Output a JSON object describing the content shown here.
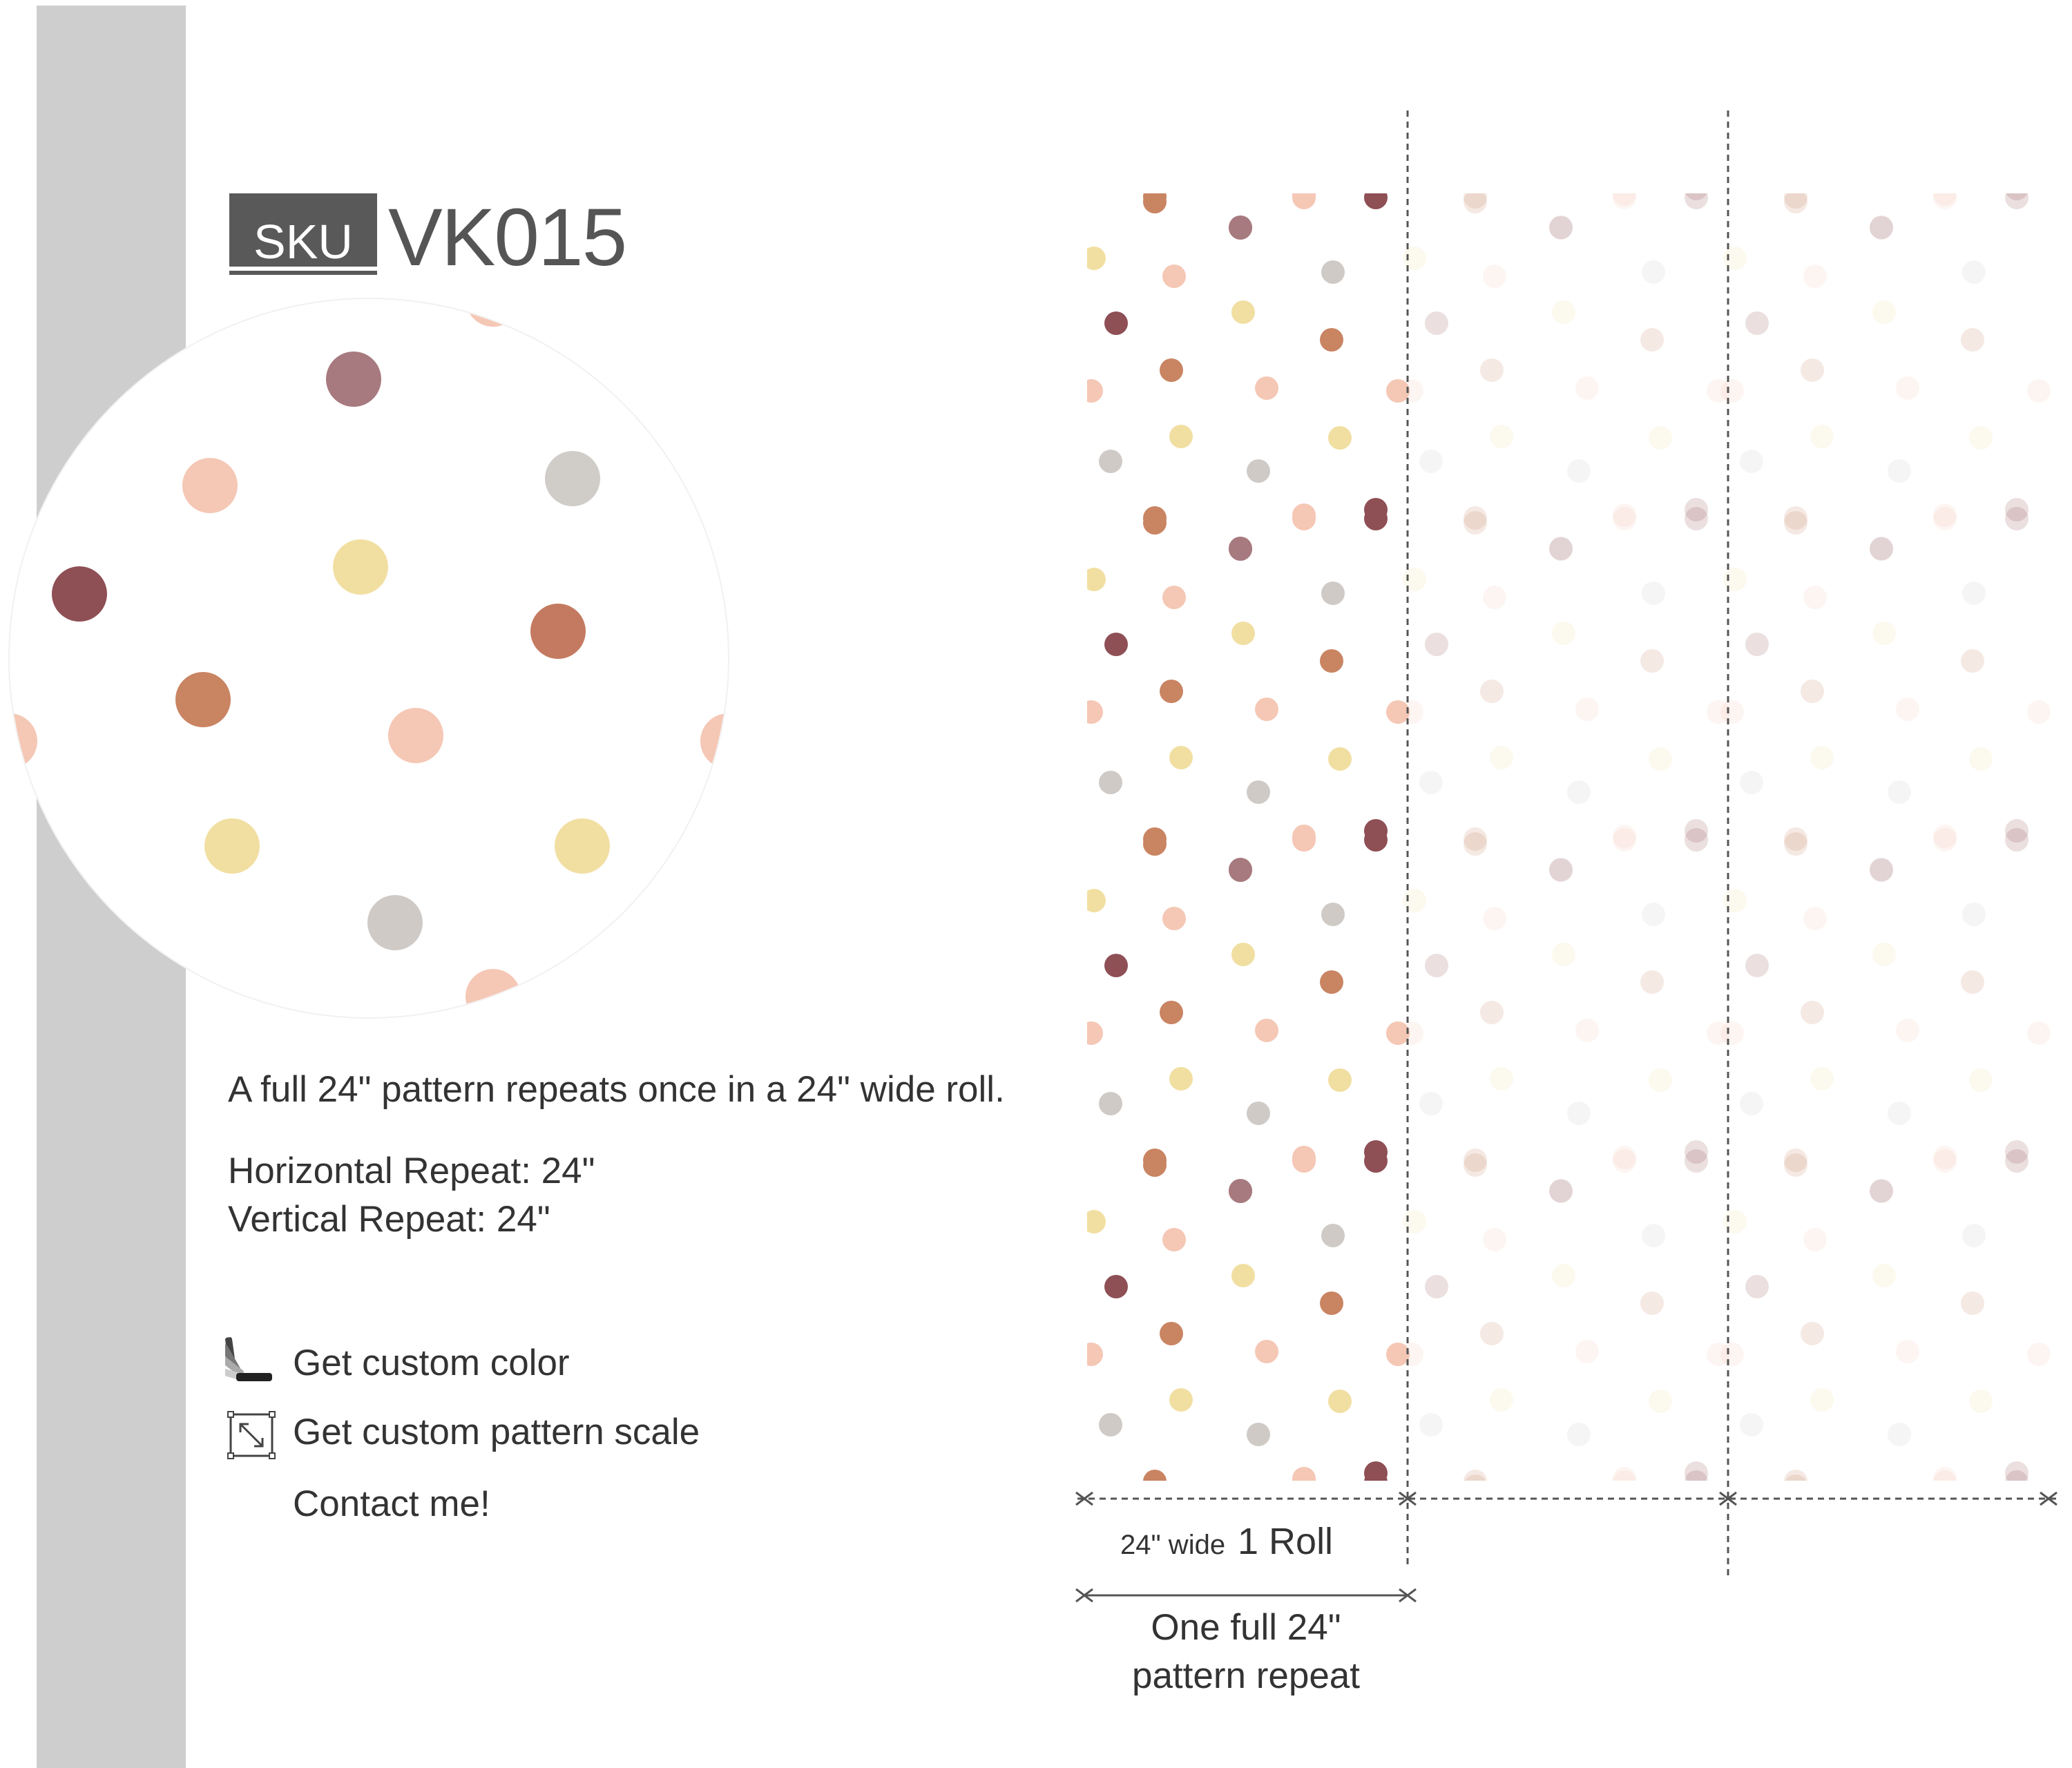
{
  "sku": {
    "badge": "SKU",
    "code": "VK015"
  },
  "description": "A full 24\" pattern repeats once in a 24\" wide roll.",
  "repeats": {
    "horizontal": "Horizontal Repeat: 24\"",
    "vertical": "Vertical Repeat: 24\""
  },
  "actions": {
    "custom_color": "Get custom color",
    "custom_scale": "Get custom pattern scale",
    "contact": "Contact me!"
  },
  "diagram": {
    "roll_width": "24\" wide",
    "roll_count": "1 Roll",
    "repeat_line1": "One full 24\"",
    "repeat_line2": "pattern repeat"
  },
  "colors": {
    "mauve": "#a77a7f",
    "burgundy": "#8e4f55",
    "blush": "#f5c7b5",
    "grey": "#cfcac6",
    "yellow": "#f1dfa2",
    "terracotta": "#c98462",
    "sidebar": "#cecece",
    "badge": "#595959"
  },
  "icons": {
    "color": "color-swatch-icon",
    "scale": "scale-arrow-icon"
  }
}
